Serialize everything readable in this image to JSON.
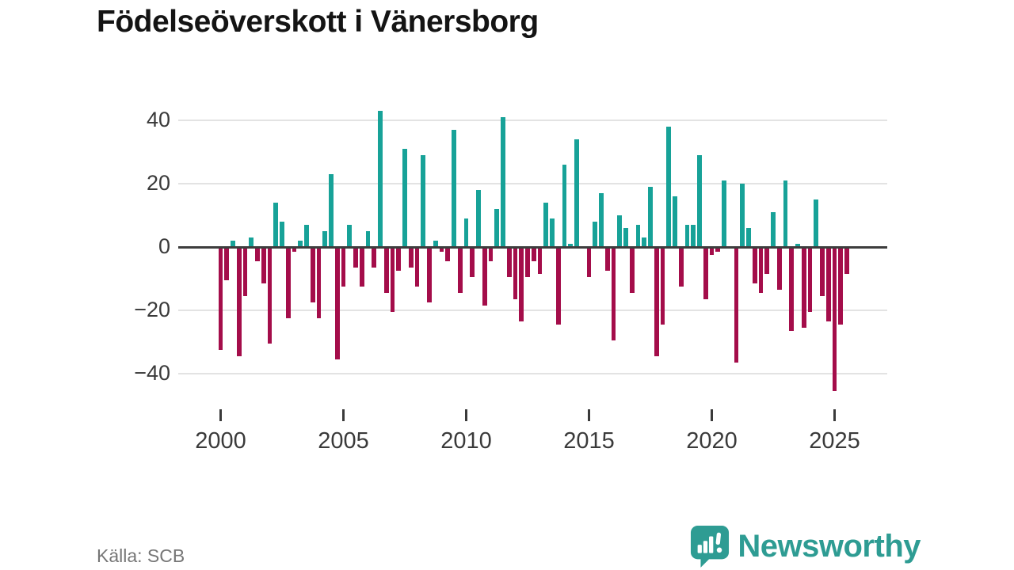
{
  "title": "Födelseöverskott i Vänersborg",
  "source": "Källa: SCB",
  "brand": {
    "name": "Newsworthy",
    "color": "#2e9c93",
    "icon": "speech-bubble-barchart-icon"
  },
  "colors": {
    "positive": "#17a298",
    "negative": "#a40d4a",
    "grid": "#e3e3e3",
    "zero_line": "#3d3d3d",
    "tick_text": "#3a3a3a",
    "title_text": "#141414",
    "source_text": "#767676"
  },
  "chart_data": {
    "type": "bar",
    "title": "Födelseöverskott i Vänersborg",
    "xlabel": "",
    "ylabel": "",
    "grid": true,
    "legend": "none",
    "ylim": [
      -50,
      46
    ],
    "yticks": [
      40,
      20,
      0,
      -20,
      -40
    ],
    "xticks": [
      "2000",
      "2005",
      "2010",
      "2015",
      "2020",
      "2025"
    ],
    "xtick_indices": [
      0,
      20,
      40,
      60,
      80,
      100
    ],
    "x": [
      "2000Q1",
      "2000Q2",
      "2000Q3",
      "2000Q4",
      "2001Q1",
      "2001Q2",
      "2001Q3",
      "2001Q4",
      "2002Q1",
      "2002Q2",
      "2002Q3",
      "2002Q4",
      "2003Q1",
      "2003Q2",
      "2003Q3",
      "2003Q4",
      "2004Q1",
      "2004Q2",
      "2004Q3",
      "2004Q4",
      "2005Q1",
      "2005Q2",
      "2005Q3",
      "2005Q4",
      "2006Q1",
      "2006Q2",
      "2006Q3",
      "2006Q4",
      "2007Q1",
      "2007Q2",
      "2007Q3",
      "2007Q4",
      "2008Q1",
      "2008Q2",
      "2008Q3",
      "2008Q4",
      "2009Q1",
      "2009Q2",
      "2009Q3",
      "2009Q4",
      "2010Q1",
      "2010Q2",
      "2010Q3",
      "2010Q4",
      "2011Q1",
      "2011Q2",
      "2011Q3",
      "2011Q4",
      "2012Q1",
      "2012Q2",
      "2012Q3",
      "2012Q4",
      "2013Q1",
      "2013Q2",
      "2013Q3",
      "2013Q4",
      "2014Q1",
      "2014Q2",
      "2014Q3",
      "2014Q4",
      "2015Q1",
      "2015Q2",
      "2015Q3",
      "2015Q4",
      "2016Q1",
      "2016Q2",
      "2016Q3",
      "2016Q4",
      "2017Q1",
      "2017Q2",
      "2017Q3",
      "2017Q4",
      "2018Q1",
      "2018Q2",
      "2018Q3",
      "2018Q4",
      "2019Q1",
      "2019Q2",
      "2019Q3",
      "2019Q4",
      "2020Q1",
      "2020Q2",
      "2020Q3",
      "2020Q4",
      "2021Q1",
      "2021Q2",
      "2021Q3",
      "2021Q4",
      "2022Q1",
      "2022Q2",
      "2022Q3",
      "2022Q4",
      "2023Q1",
      "2023Q2",
      "2023Q3",
      "2023Q4",
      "2024Q1",
      "2024Q2",
      "2024Q3",
      "2024Q4",
      "2025Q1",
      "2025Q2",
      "2025Q3"
    ],
    "values": [
      -32,
      -10,
      2,
      -34,
      -15,
      3,
      -4,
      -11,
      -30,
      14,
      8,
      -22,
      -1,
      2,
      7,
      -17,
      -22,
      5,
      23,
      -35,
      -12,
      7,
      -6,
      -12,
      5,
      -6,
      43,
      -14,
      -20,
      -7,
      31,
      -6,
      -12,
      29,
      -17,
      2,
      -1,
      -4,
      37,
      -14,
      9,
      -9,
      18,
      -18,
      -4,
      12,
      41,
      -9,
      -16,
      -23,
      -9,
      -4,
      -8,
      14,
      9,
      -24,
      26,
      1,
      34,
      0,
      -9,
      8,
      17,
      -7,
      -29,
      10,
      6,
      -14,
      7,
      3,
      19,
      -34,
      -24,
      38,
      16,
      -12,
      7,
      7,
      29,
      -16,
      -2,
      -1,
      21,
      0,
      -36,
      20,
      6,
      -11,
      -14,
      -8,
      11,
      -13,
      21,
      -26,
      1,
      -25,
      -20,
      15,
      -15,
      -23,
      -45,
      -24,
      -8
    ]
  }
}
